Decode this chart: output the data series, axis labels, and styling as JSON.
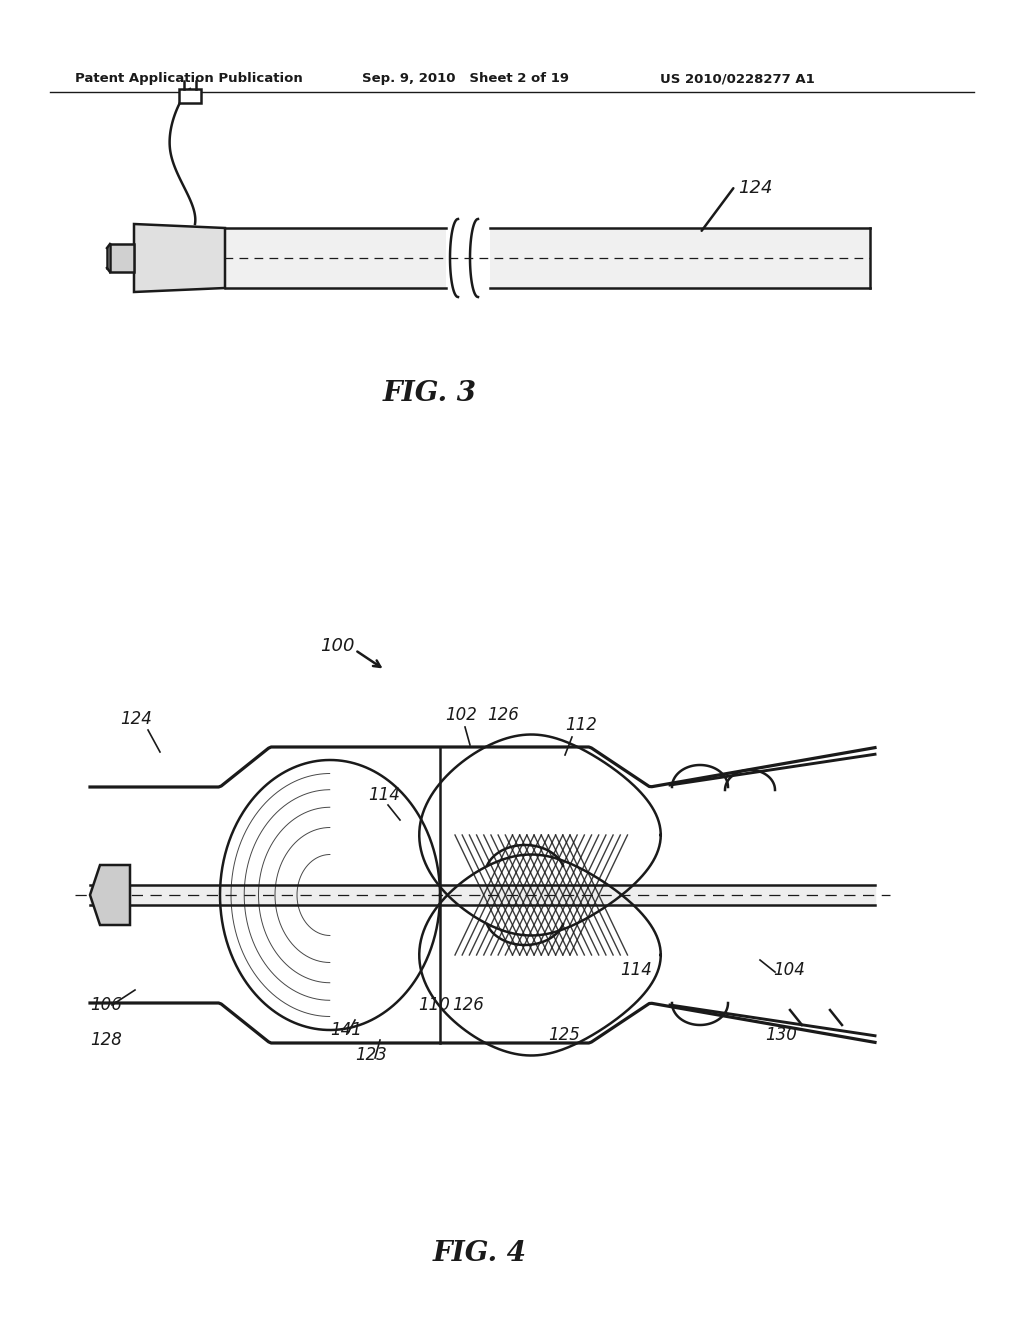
{
  "bg_color": "#ffffff",
  "line_color": "#1a1a1a",
  "header_left": "Patent Application Publication",
  "header_mid": "Sep. 9, 2010   Sheet 2 of 19",
  "header_right": "US 2010/0228277 A1",
  "fig3_label": "FIG. 3",
  "fig4_label": "FIG. 4",
  "label_100": "100",
  "label_102": "102",
  "label_104": "104",
  "label_106": "106",
  "label_110": "110",
  "label_112": "112",
  "label_114a": "114",
  "label_114b": "114",
  "label_123": "123",
  "label_124_fig3": "124",
  "label_124_fig4": "124",
  "label_125": "125",
  "label_126a": "126",
  "label_126b": "126",
  "label_128": "128",
  "label_130": "130",
  "label_141": "141"
}
